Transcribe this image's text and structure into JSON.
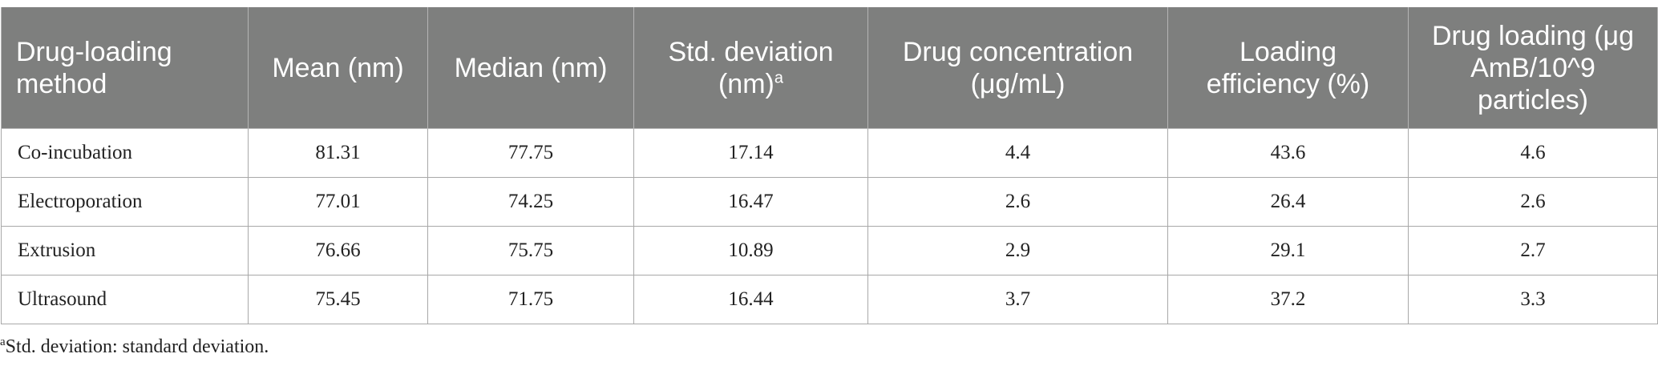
{
  "table": {
    "header": [
      "Drug-loading method",
      "Mean (nm)",
      "Median (nm)",
      "Std. deviation (nm)",
      "Drug concentration (μg/mL)",
      "Loading efficiency (%)",
      "Drug loading (μg AmB/10^9 particles)"
    ],
    "header_superscript": {
      "column": 3,
      "text": "a"
    },
    "rows": [
      [
        "Co-incubation",
        "81.31",
        "77.75",
        "17.14",
        "4.4",
        "43.6",
        "4.6"
      ],
      [
        "Electroporation",
        "77.01",
        "74.25",
        "16.47",
        "2.6",
        "26.4",
        "2.6"
      ],
      [
        "Extrusion",
        "76.66",
        "75.75",
        "10.89",
        "2.9",
        "29.1",
        "2.7"
      ],
      [
        "Ultrasound",
        "75.45",
        "71.75",
        "16.44",
        "3.7",
        "37.2",
        "3.3"
      ]
    ]
  },
  "footnote": {
    "marker": "a",
    "text": "Std. deviation: standard deviation."
  }
}
